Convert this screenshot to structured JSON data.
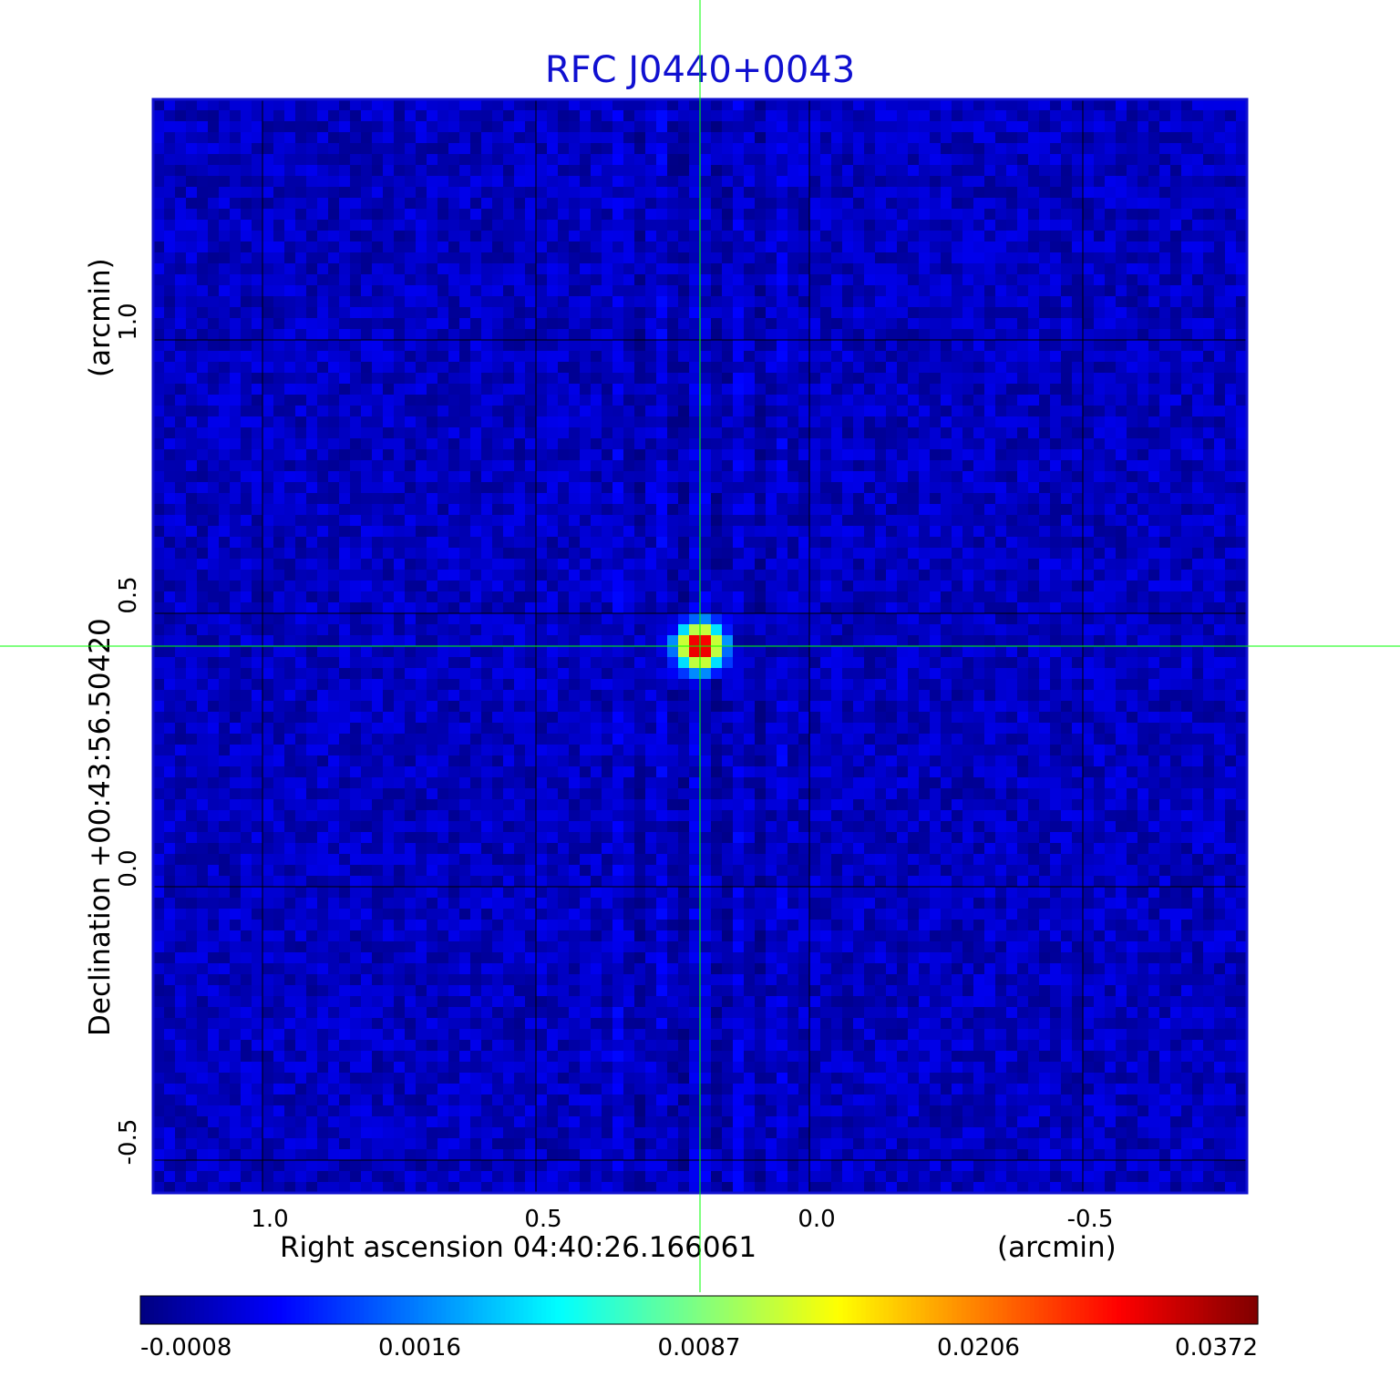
{
  "chart_data": {
    "type": "heatmap",
    "title": "RFC J0440+0043",
    "xlabel": "Right ascension  04:40:26.166061",
    "xunit": "(arcmin)",
    "ylabel": "Declination  +00:43:56.50420",
    "yunit": "(arcmin)",
    "xlim": [
      1.2,
      -0.8
    ],
    "ylim": [
      -0.56,
      1.44
    ],
    "x_ticks": [
      1.0,
      0.5,
      0.0,
      -0.5
    ],
    "x_tick_labels": [
      "1.0",
      "0.5",
      "0.0",
      "-0.5"
    ],
    "y_ticks": [
      1.0,
      0.5,
      0.0,
      -0.5
    ],
    "y_tick_labels": [
      "1.0",
      "0.5",
      "0.0",
      "-0.5"
    ],
    "grid": true,
    "colormap": "jet",
    "colorbar": {
      "ticks": [
        -0.0008,
        0.0016,
        0.0087,
        0.0206,
        0.0372
      ],
      "tick_labels": [
        "-0.0008",
        "0.0016",
        "0.0087",
        "0.0206",
        "0.0372"
      ]
    },
    "peak": {
      "x": 0.2,
      "y": 0.44,
      "value": 0.0372
    },
    "crosshair": {
      "x": 0.2,
      "y": 0.44
    },
    "background_level": -0.0002
  },
  "colors": {
    "title": "#1010d0",
    "frame": "#1010d0",
    "crosshair": "#00ff00",
    "grid": "#000000"
  }
}
